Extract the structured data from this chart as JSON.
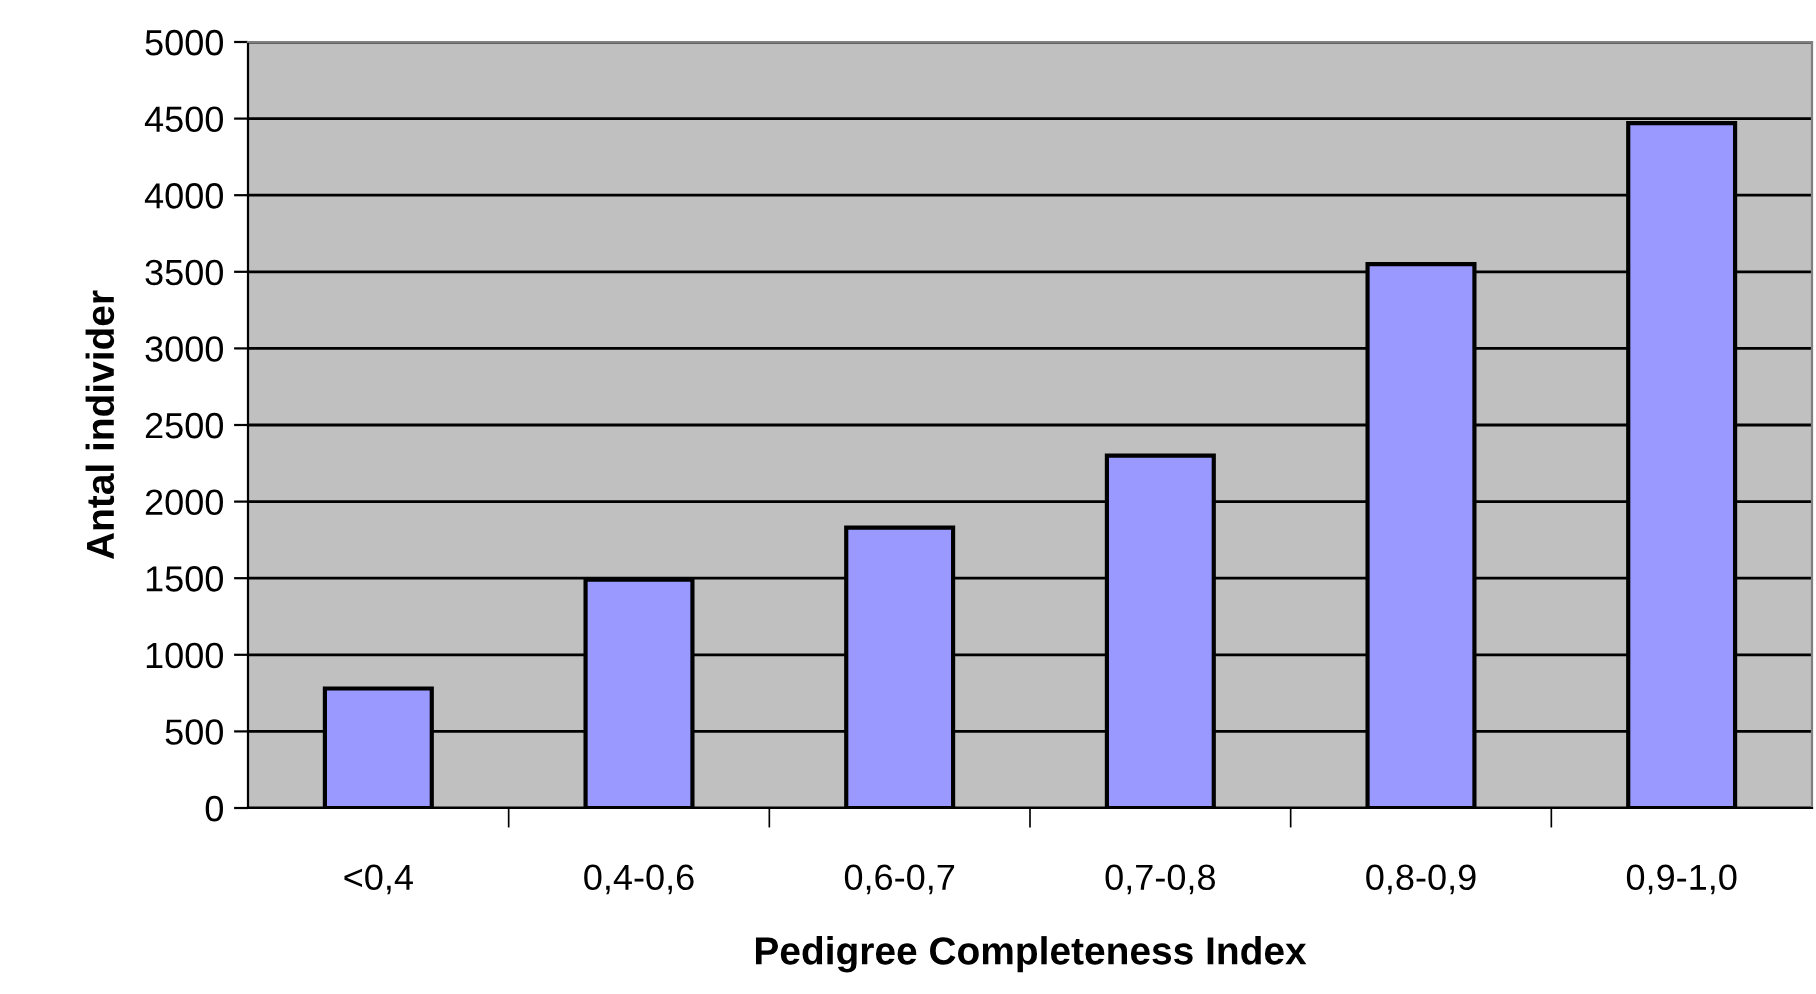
{
  "chart_data": {
    "type": "bar",
    "xlabel": "Pedigree Completeness Index",
    "ylabel": "Antal individer",
    "categories": [
      "<0,4",
      "0,4-0,6",
      "0,6-0,7",
      "0,7-0,8",
      "0,8-0,9",
      "0,9-1,0"
    ],
    "values": [
      780,
      1490,
      1830,
      2300,
      3550,
      4470
    ],
    "color": "#9999ff",
    "ylim": [
      0,
      5000
    ],
    "yticks": [
      0,
      500,
      1000,
      1500,
      2000,
      2500,
      3000,
      3500,
      4000,
      4500,
      5000
    ],
    "grid": "y",
    "legend": false
  }
}
